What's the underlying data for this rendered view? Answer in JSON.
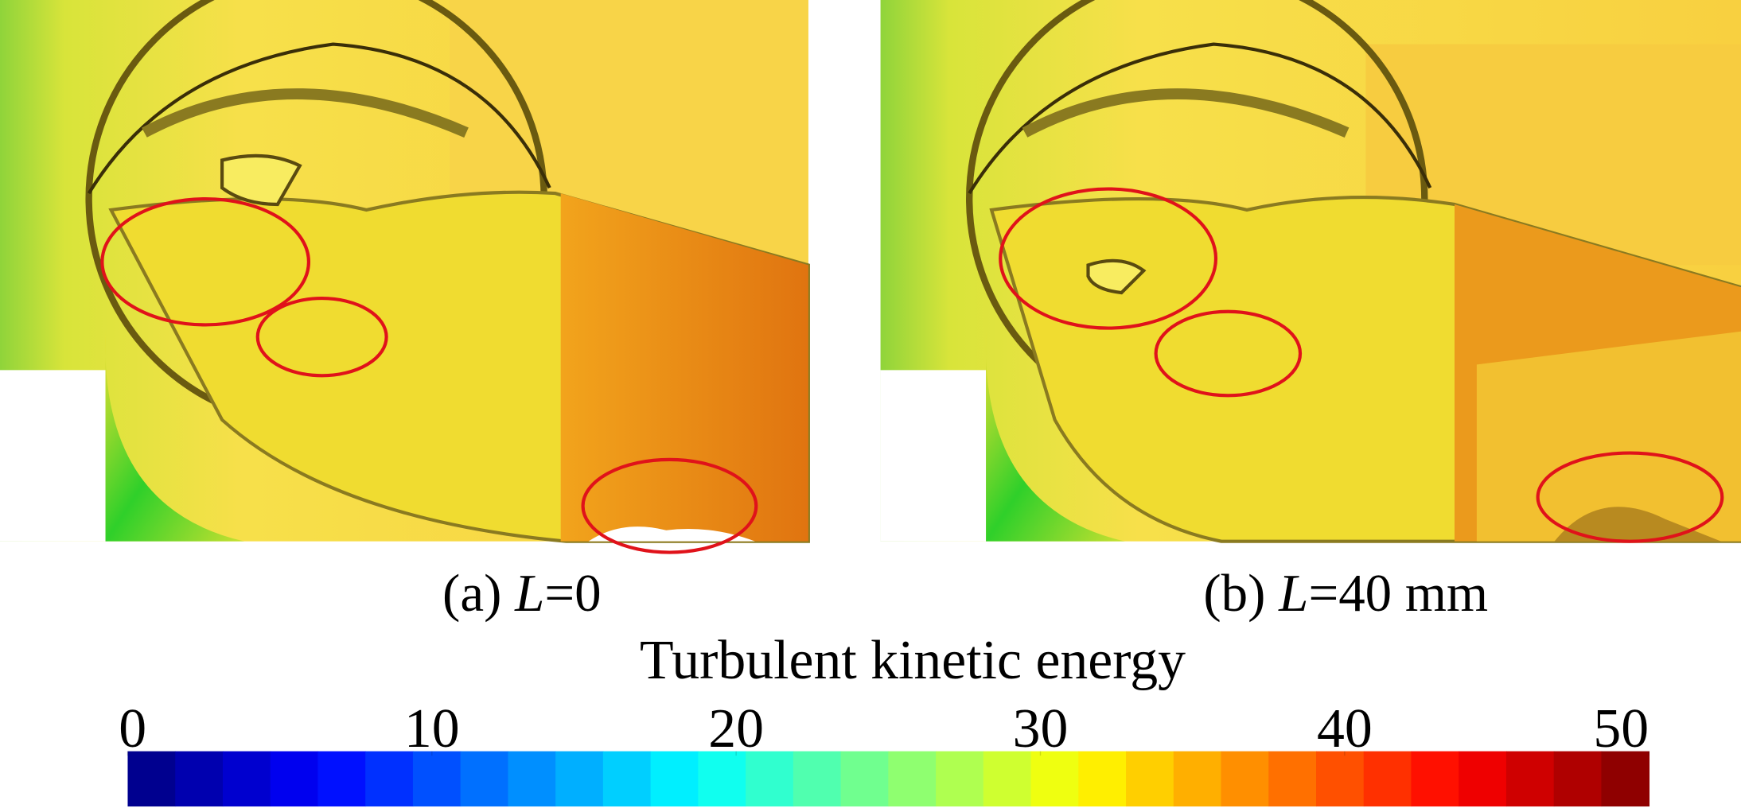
{
  "panels": [
    {
      "prefix": "(a) ",
      "variable": "L",
      "suffix": "=0"
    },
    {
      "prefix": "(b) ",
      "variable": "L",
      "suffix": "=40 mm"
    }
  ],
  "colorbar": {
    "title": "Turbulent kinetic energy",
    "lim": [
      0,
      50
    ],
    "ticks": [
      0,
      10,
      20,
      30,
      40,
      50
    ]
  }
}
